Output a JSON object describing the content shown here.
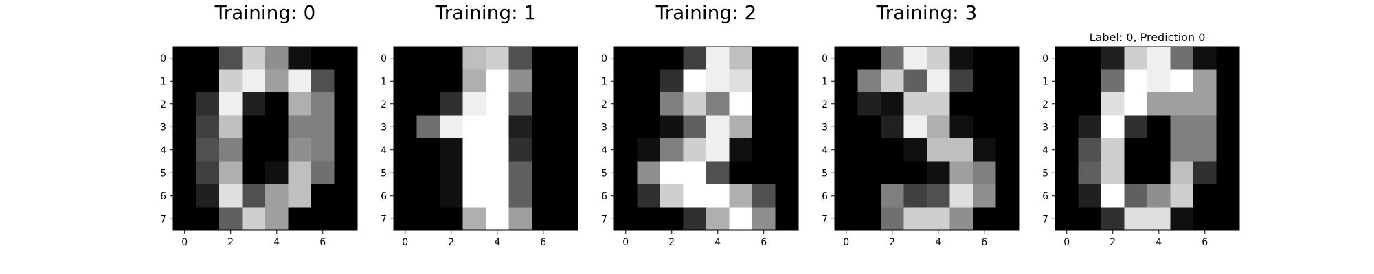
{
  "chart_data": [
    {
      "type": "heatmap",
      "title": "Training: 0",
      "colormap": "gray",
      "vmin": 0,
      "vmax": 16,
      "x_ticks": [
        "0",
        "2",
        "4",
        "6"
      ],
      "y_ticks": [
        "0",
        "1",
        "2",
        "3",
        "4",
        "5",
        "6",
        "7"
      ],
      "pixels": [
        [
          0,
          0,
          5,
          13,
          9,
          1,
          0,
          0
        ],
        [
          0,
          0,
          13,
          15,
          10,
          15,
          5,
          0
        ],
        [
          0,
          3,
          15,
          2,
          0,
          11,
          8,
          0
        ],
        [
          0,
          4,
          12,
          0,
          0,
          8,
          8,
          0
        ],
        [
          0,
          5,
          8,
          0,
          0,
          9,
          8,
          0
        ],
        [
          0,
          4,
          11,
          0,
          1,
          12,
          7,
          0
        ],
        [
          0,
          2,
          14,
          5,
          10,
          12,
          0,
          0
        ],
        [
          0,
          0,
          6,
          13,
          10,
          0,
          0,
          0
        ]
      ]
    },
    {
      "type": "heatmap",
      "title": "Training: 1",
      "colormap": "gray",
      "vmin": 0,
      "vmax": 16,
      "x_ticks": [
        "0",
        "2",
        "4",
        "6"
      ],
      "y_ticks": [
        "0",
        "1",
        "2",
        "3",
        "4",
        "5",
        "6",
        "7"
      ],
      "pixels": [
        [
          0,
          0,
          0,
          12,
          13,
          5,
          0,
          0
        ],
        [
          0,
          0,
          0,
          11,
          16,
          9,
          0,
          0
        ],
        [
          0,
          0,
          3,
          15,
          16,
          6,
          0,
          0
        ],
        [
          0,
          7,
          15,
          16,
          16,
          2,
          0,
          0
        ],
        [
          0,
          0,
          1,
          16,
          16,
          3,
          0,
          0
        ],
        [
          0,
          0,
          1,
          16,
          16,
          6,
          0,
          0
        ],
        [
          0,
          0,
          1,
          16,
          16,
          6,
          0,
          0
        ],
        [
          0,
          0,
          0,
          11,
          16,
          10,
          0,
          0
        ]
      ]
    },
    {
      "type": "heatmap",
      "title": "Training: 2",
      "colormap": "gray",
      "vmin": 0,
      "vmax": 16,
      "x_ticks": [
        "0",
        "2",
        "4",
        "6"
      ],
      "y_ticks": [
        "0",
        "1",
        "2",
        "3",
        "4",
        "5",
        "6",
        "7"
      ],
      "pixels": [
        [
          0,
          0,
          0,
          4,
          15,
          12,
          0,
          0
        ],
        [
          0,
          0,
          3,
          16,
          15,
          14,
          0,
          0
        ],
        [
          0,
          0,
          8,
          13,
          8,
          16,
          0,
          0
        ],
        [
          0,
          0,
          1,
          6,
          15,
          11,
          0,
          0
        ],
        [
          0,
          1,
          8,
          13,
          15,
          1,
          0,
          0
        ],
        [
          0,
          9,
          16,
          16,
          5,
          0,
          0,
          0
        ],
        [
          0,
          3,
          13,
          16,
          16,
          11,
          5,
          0
        ],
        [
          0,
          0,
          0,
          3,
          11,
          16,
          9,
          0
        ]
      ]
    },
    {
      "type": "heatmap",
      "title": "Training: 3",
      "colormap": "gray",
      "vmin": 0,
      "vmax": 16,
      "x_ticks": [
        "0",
        "2",
        "4",
        "6"
      ],
      "y_ticks": [
        "0",
        "1",
        "2",
        "3",
        "4",
        "5",
        "6",
        "7"
      ],
      "pixels": [
        [
          0,
          0,
          7,
          15,
          13,
          1,
          0,
          0
        ],
        [
          0,
          8,
          13,
          6,
          15,
          4,
          0,
          0
        ],
        [
          0,
          2,
          1,
          13,
          13,
          0,
          0,
          0
        ],
        [
          0,
          0,
          2,
          15,
          11,
          1,
          0,
          0
        ],
        [
          0,
          0,
          0,
          1,
          12,
          12,
          1,
          0
        ],
        [
          0,
          0,
          0,
          0,
          1,
          10,
          8,
          0
        ],
        [
          0,
          0,
          8,
          4,
          5,
          14,
          9,
          0
        ],
        [
          0,
          0,
          7,
          13,
          13,
          9,
          0,
          0
        ]
      ]
    },
    {
      "type": "heatmap",
      "title": "Label: 0, Prediction 0",
      "colormap": "gray",
      "vmin": 0,
      "vmax": 16,
      "x_ticks": [
        "0",
        "2",
        "4",
        "6"
      ],
      "y_ticks": [
        "0",
        "1",
        "2",
        "3",
        "4",
        "5",
        "6",
        "7"
      ],
      "pixels": [
        [
          0,
          0,
          2,
          13,
          15,
          7,
          1,
          0
        ],
        [
          0,
          0,
          7,
          16,
          15,
          16,
          10,
          0
        ],
        [
          0,
          0,
          14,
          16,
          10,
          10,
          10,
          0
        ],
        [
          0,
          2,
          16,
          3,
          0,
          8,
          8,
          0
        ],
        [
          0,
          5,
          13,
          0,
          0,
          8,
          8,
          0
        ],
        [
          0,
          6,
          13,
          0,
          0,
          12,
          3,
          0
        ],
        [
          0,
          2,
          16,
          6,
          9,
          13,
          0,
          0
        ],
        [
          0,
          0,
          3,
          14,
          14,
          1,
          0,
          0
        ]
      ]
    }
  ]
}
